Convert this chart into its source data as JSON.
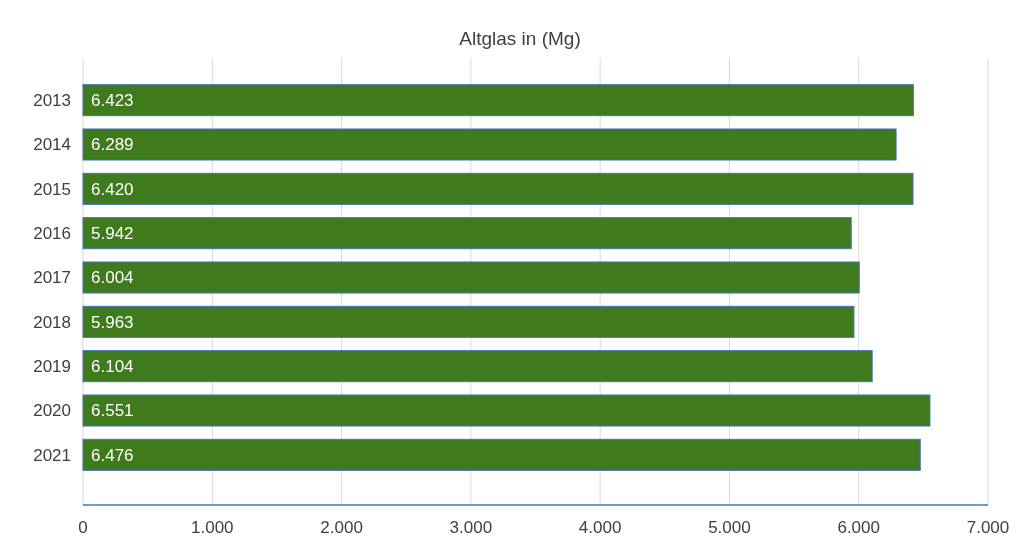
{
  "chart_data": {
    "type": "bar",
    "orientation": "horizontal",
    "title": "Altglas in (Mg)",
    "categories": [
      "2013",
      "2014",
      "2015",
      "2016",
      "2017",
      "2018",
      "2019",
      "2020",
      "2021"
    ],
    "values": [
      6423,
      6289,
      6420,
      5942,
      6004,
      5963,
      6104,
      6551,
      6476
    ],
    "value_labels": [
      "6.423",
      "6.289",
      "6.420",
      "5.942",
      "6.004",
      "5.963",
      "6.104",
      "6.551",
      "6.476"
    ],
    "color": "#3f7a1d",
    "xlim": [
      0,
      7000
    ],
    "xticks": [
      0,
      {
        "value": 1000,
        "label": "1.000"
      },
      {
        "value": 2000,
        "label": "2.000"
      },
      {
        "value": 3000,
        "label": "3.000"
      },
      {
        "value": 4000,
        "label": "4.000"
      },
      {
        "value": 5000,
        "label": "5.000"
      },
      {
        "value": 6000,
        "label": "6.000"
      },
      {
        "value": 7000,
        "label": "7.000"
      }
    ],
    "grid": "x"
  }
}
